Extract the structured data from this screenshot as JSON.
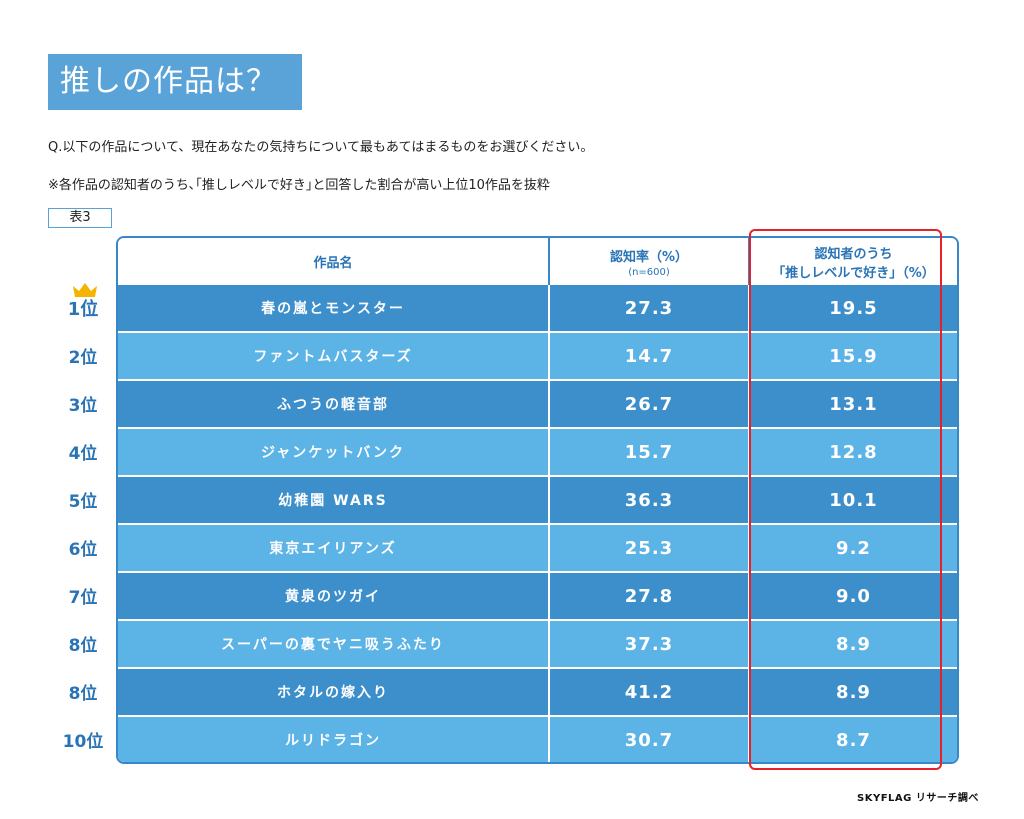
{
  "title": "推しの作品は？",
  "question": "Q.以下の作品について、現在あなたの気持ちについて最もあてはまるものをお選びください。",
  "note": "※各作品の認知者のうち､｢推しレベルで好き｣と回答した割合が高い上位10作品を抜粋",
  "table_tag": "表3",
  "headers": {
    "col1": "作品名",
    "col2": "認知率（%）",
    "col2_sub": "(n=600)",
    "col3_line1": "認知者のうち",
    "col3_line2": "「推しレベルで好き」（%）"
  },
  "ranks": [
    "1位",
    "2位",
    "3位",
    "4位",
    "5位",
    "6位",
    "7位",
    "8位",
    "8位",
    "10位"
  ],
  "crown_icon": "crown-icon",
  "colors": {
    "dark_row": "#3d8fcb",
    "light_row": "#5cb3e6",
    "accent": "#2a74b6",
    "highlight": "#e8202a",
    "title_bg": "#5aa3d8"
  },
  "credit": "SKYFLAG リサーチ調べ",
  "chart_data": {
    "type": "table",
    "columns": [
      "作品名",
      "認知率（%）",
      "認知者のうち「推しレベルで好き」（%）"
    ],
    "rows": [
      [
        "春の嵐とモンスター",
        "27.3",
        "19.5"
      ],
      [
        "ファントムバスターズ",
        "14.7",
        "15.9"
      ],
      [
        "ふつうの軽音部",
        "26.7",
        "13.1"
      ],
      [
        "ジャンケットバンク",
        "15.7",
        "12.8"
      ],
      [
        "幼稚園 WARS",
        "36.3",
        "10.1"
      ],
      [
        "東京エイリアンズ",
        "25.3",
        "9.2"
      ],
      [
        "黄泉のツガイ",
        "27.8",
        "9.0"
      ],
      [
        "スーパーの裏でヤニ吸うふたり",
        "37.3",
        "8.9"
      ],
      [
        "ホタルの嫁入り",
        "41.2",
        "8.9"
      ],
      [
        "ルリドラゴン",
        "30.7",
        "8.7"
      ]
    ]
  }
}
